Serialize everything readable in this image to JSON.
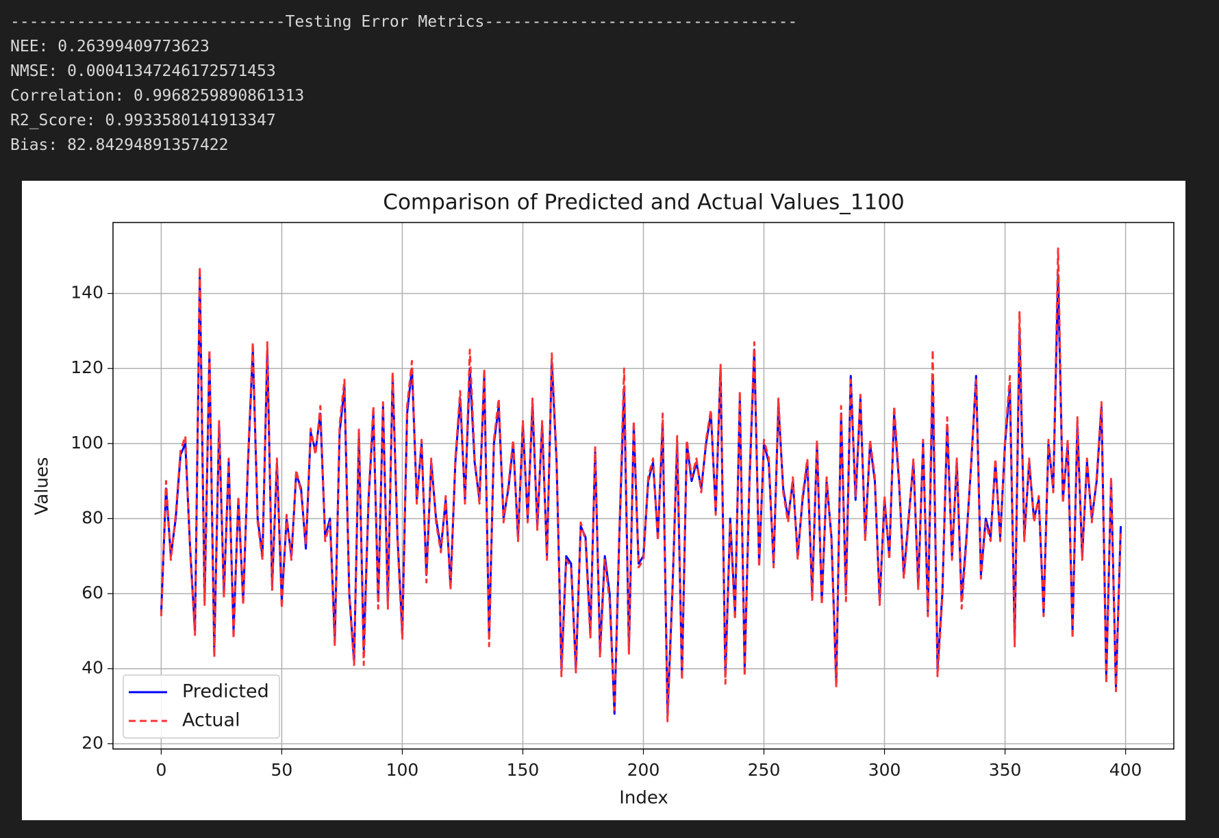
{
  "output": {
    "lines": [
      "-----------------------------Testing Error Metrics---------------------------------",
      "NEE: 0.26399409773623",
      "NMSE: 0.00041347246172571453",
      "Correlation: 0.9968259890861313",
      "R2_Score: 0.9933580141913347",
      "Bias: 82.84294891357422"
    ]
  },
  "chart_data": {
    "type": "line",
    "title": "Comparison of Predicted and Actual Values_1100",
    "xlabel": "Index",
    "ylabel": "Values",
    "x": [
      0,
      2,
      4,
      6,
      8,
      10,
      12,
      14,
      16,
      18,
      20,
      22,
      24,
      26,
      28,
      30,
      32,
      34,
      36,
      38,
      40,
      42,
      44,
      46,
      48,
      50,
      52,
      54,
      56,
      58,
      60,
      62,
      64,
      66,
      68,
      70,
      72,
      74,
      76,
      78,
      80,
      82,
      84,
      86,
      88,
      90,
      92,
      94,
      96,
      98,
      100,
      102,
      104,
      106,
      108,
      110,
      112,
      114,
      116,
      118,
      120,
      122,
      124,
      126,
      128,
      130,
      132,
      134,
      136,
      138,
      140,
      142,
      144,
      146,
      148,
      150,
      152,
      154,
      156,
      158,
      160,
      162,
      164,
      166,
      168,
      170,
      172,
      174,
      176,
      178,
      180,
      182,
      184,
      186,
      188,
      190,
      192,
      194,
      196,
      198,
      200,
      202,
      204,
      206,
      208,
      210,
      212,
      214,
      216,
      218,
      220,
      222,
      224,
      226,
      228,
      230,
      232,
      234,
      236,
      238,
      240,
      242,
      244,
      246,
      248,
      250,
      252,
      254,
      256,
      258,
      260,
      262,
      264,
      266,
      268,
      270,
      272,
      274,
      276,
      278,
      280,
      282,
      284,
      286,
      288,
      290,
      292,
      294,
      296,
      298,
      300,
      302,
      304,
      306,
      308,
      310,
      312,
      314,
      316,
      318,
      320,
      322,
      324,
      326,
      328,
      330,
      332,
      334,
      336,
      338,
      340,
      342,
      344,
      346,
      348,
      350,
      352,
      354,
      356,
      358,
      360,
      362,
      364,
      366,
      368,
      370,
      372,
      374,
      376,
      378,
      380,
      382,
      384,
      386,
      388,
      390,
      392,
      394,
      396,
      398
    ],
    "series": [
      {
        "name": "Predicted",
        "color": "#0000ff",
        "dash": false,
        "values": [
          55,
          88,
          70,
          80,
          97,
          100,
          72,
          50,
          145,
          58,
          124,
          45,
          105,
          60,
          95,
          50,
          85,
          58,
          95,
          125,
          80,
          70,
          125,
          62,
          95,
          58,
          80,
          70,
          92,
          88,
          72,
          103,
          98,
          108,
          75,
          80,
          48,
          103,
          115,
          60,
          42,
          102,
          45,
          85,
          108,
          58,
          110,
          58,
          118,
          75,
          50,
          108,
          120,
          85,
          100,
          65,
          95,
          80,
          72,
          85,
          62,
          95,
          112,
          85,
          120,
          95,
          85,
          118,
          48,
          100,
          110,
          80,
          88,
          100,
          75,
          105,
          80,
          110,
          78,
          105,
          70,
          122,
          95,
          40,
          70,
          68,
          40,
          78,
          75,
          50,
          98,
          45,
          70,
          60,
          28,
          75,
          115,
          45,
          105,
          68,
          70,
          90,
          95,
          75,
          105,
          28,
          60,
          100,
          38,
          100,
          90,
          95,
          88,
          100,
          108,
          82,
          120,
          38,
          80,
          55,
          112,
          40,
          90,
          125,
          68,
          100,
          95,
          68,
          110,
          88,
          80,
          90,
          70,
          85,
          95,
          60,
          100,
          58,
          90,
          75,
          36,
          108,
          60,
          118,
          85,
          112,
          75,
          100,
          90,
          58,
          85,
          70,
          108,
          90,
          65,
          80,
          95,
          62,
          100,
          55,
          118,
          40,
          60,
          105,
          70,
          95,
          58,
          75,
          95,
          118,
          65,
          80,
          75,
          95,
          75,
          100,
          115,
          48,
          130,
          75,
          95,
          80,
          85,
          55,
          100,
          88,
          145,
          85,
          100,
          50,
          105,
          70,
          95,
          80,
          90,
          110,
          38,
          90,
          35,
          78
        ]
      },
      {
        "name": "Actual",
        "color": "#ff3333",
        "dash": true,
        "values": [
          54,
          90,
          69,
          81,
          98,
          102,
          71,
          49,
          147,
          57,
          125,
          43,
          106,
          59,
          96,
          48,
          86,
          57,
          96,
          127,
          79,
          69,
          127,
          61,
          96,
          56,
          81,
          69,
          93,
          87,
          73,
          104,
          97,
          110,
          74,
          79,
          46,
          105,
          117,
          59,
          41,
          104,
          41,
          86,
          110,
          56,
          111,
          56,
          119,
          74,
          48,
          110,
          122,
          84,
          101,
          63,
          96,
          79,
          71,
          86,
          61,
          96,
          114,
          84,
          125,
          96,
          84,
          120,
          46,
          101,
          112,
          79,
          89,
          101,
          74,
          106,
          79,
          112,
          77,
          106,
          69,
          124,
          96,
          38,
          69,
          67,
          39,
          79,
          74,
          48,
          99,
          43,
          69,
          58,
          29,
          76,
          120,
          44,
          106,
          67,
          69,
          91,
          96,
          74,
          108,
          26,
          59,
          102,
          37,
          101,
          91,
          96,
          87,
          101,
          109,
          81,
          121,
          36,
          79,
          53,
          114,
          38,
          91,
          127,
          67,
          101,
          96,
          67,
          112,
          87,
          79,
          91,
          69,
          86,
          96,
          58,
          101,
          57,
          91,
          74,
          35,
          110,
          58,
          117,
          86,
          113,
          74,
          101,
          91,
          57,
          86,
          69,
          110,
          91,
          64,
          79,
          96,
          61,
          101,
          54,
          125,
          38,
          59,
          107,
          69,
          96,
          56,
          74,
          96,
          117,
          64,
          79,
          74,
          96,
          74,
          101,
          118,
          46,
          135,
          74,
          96,
          79,
          86,
          54,
          101,
          87,
          152,
          84,
          101,
          48,
          107,
          69,
          96,
          79,
          91,
          111,
          36,
          91,
          34,
          77
        ]
      }
    ],
    "xlim": [
      -20,
      420
    ],
    "ylim": [
      18.6,
      158.9
    ],
    "xticks": [
      0,
      50,
      100,
      150,
      200,
      250,
      300,
      350,
      400
    ],
    "yticks": [
      20,
      40,
      60,
      80,
      100,
      120,
      140
    ],
    "grid": true,
    "legend": "lower left"
  }
}
